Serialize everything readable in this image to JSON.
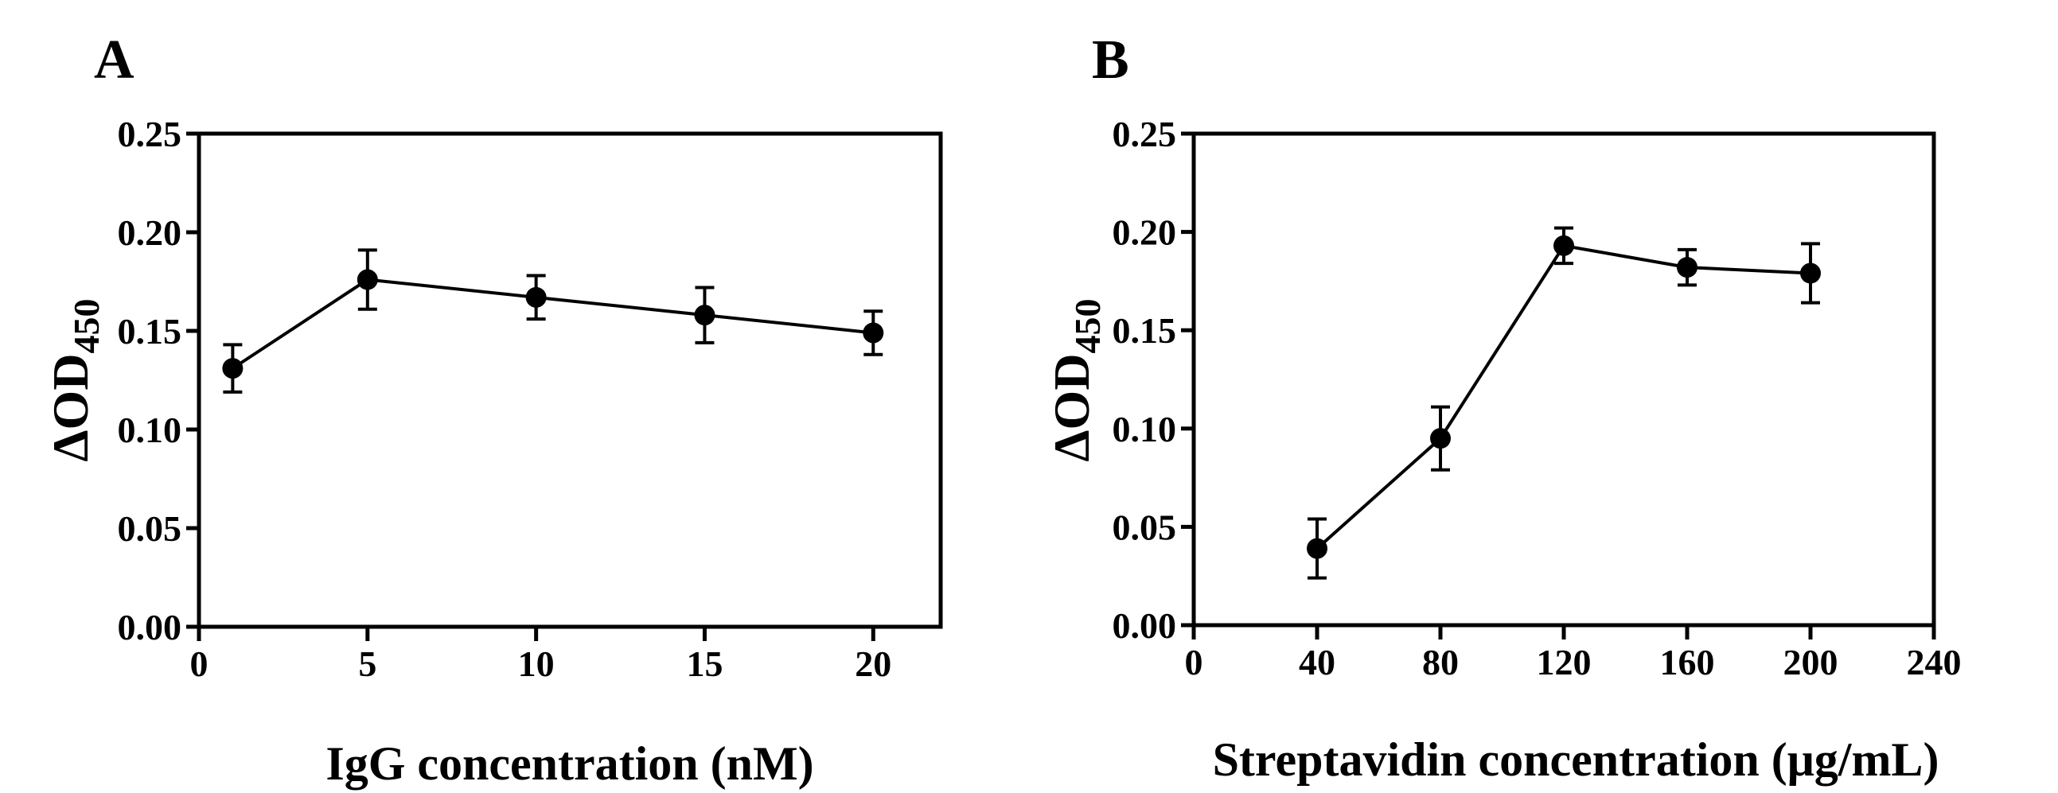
{
  "chart_data": [
    {
      "type": "line",
      "panel": "A",
      "title": "",
      "xlabel": "IgG concentration (nM)",
      "ylabel": "ΔOD",
      "ylabel_sub": "450",
      "xlim": [
        0,
        22
      ],
      "ylim": [
        0,
        0.25
      ],
      "xticks": [
        0,
        5,
        10,
        15,
        20
      ],
      "xtick_labels": [
        "0",
        "5",
        "10",
        "15",
        "20"
      ],
      "yticks": [
        0,
        0.05,
        0.1,
        0.15,
        0.2,
        0.25
      ],
      "ytick_labels": [
        "0.00",
        "0.05",
        "0.10",
        "0.15",
        "0.20",
        "0.25"
      ],
      "grid": false,
      "series": [
        {
          "name": "ΔOD450",
          "x": [
            1,
            5,
            10,
            15,
            20
          ],
          "y": [
            0.131,
            0.176,
            0.167,
            0.158,
            0.149
          ],
          "err": [
            0.012,
            0.015,
            0.011,
            0.014,
            0.011
          ]
        }
      ]
    },
    {
      "type": "line",
      "panel": "B",
      "title": "",
      "xlabel": "Streptavidin concentration (μg/mL)",
      "ylabel": "ΔOD",
      "ylabel_sub": "450",
      "xlim": [
        0,
        240
      ],
      "ylim": [
        0,
        0.25
      ],
      "xticks": [
        0,
        40,
        80,
        120,
        160,
        200,
        240
      ],
      "xtick_labels": [
        "0",
        "40",
        "80",
        "120",
        "160",
        "200",
        "240"
      ],
      "yticks": [
        0,
        0.05,
        0.1,
        0.15,
        0.2,
        0.25
      ],
      "ytick_labels": [
        "0.00",
        "0.05",
        "0.10",
        "0.15",
        "0.20",
        "0.25"
      ],
      "grid": false,
      "series": [
        {
          "name": "ΔOD450",
          "x": [
            40,
            80,
            120,
            160,
            200
          ],
          "y": [
            0.039,
            0.095,
            0.193,
            0.182,
            0.179
          ],
          "err": [
            0.015,
            0.016,
            0.009,
            0.009,
            0.015
          ]
        }
      ]
    }
  ]
}
